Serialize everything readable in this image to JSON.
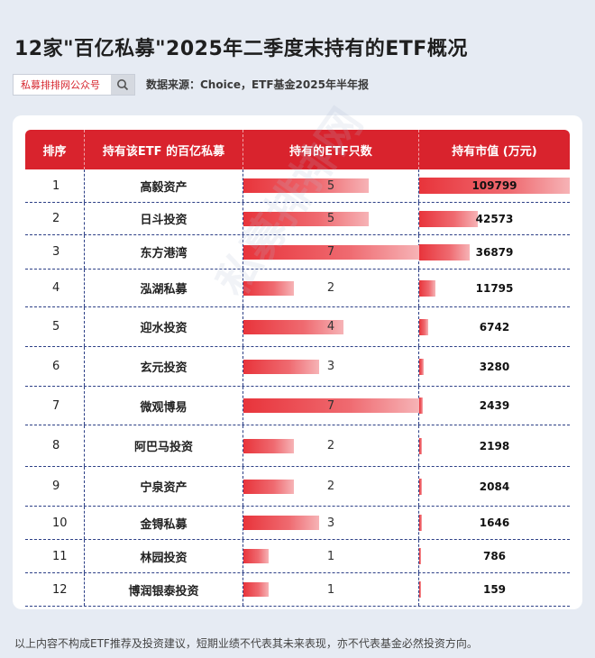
{
  "title": "12家\"百亿私募\"2025年二季度末持有的ETF概况",
  "search": {
    "text": "私募排排网公众号",
    "icon": "search-icon"
  },
  "source": "数据来源：Choice，ETF基金2025年半年报",
  "footnote": "以上内容不构成ETF推荐及投资建议，短期业绩不代表其未来表现，亦不代表基金必然投资方向。",
  "watermark": "私募排排网",
  "colors": {
    "header": "#d9232d",
    "bar": "#e8343b",
    "divider": "#2c3f86"
  },
  "chart_data": {
    "type": "table",
    "columns": [
      "排序",
      "持有该ETF 的百亿私募",
      "持有的ETF只数",
      "持有市值 (万元)"
    ],
    "rows": [
      {
        "rank": "1",
        "name": "高毅资产",
        "count": 5,
        "value": 109799
      },
      {
        "rank": "2",
        "name": "日斗投资",
        "count": 5,
        "value": 42573
      },
      {
        "rank": "3",
        "name": "东方港湾",
        "count": 7,
        "value": 36879
      },
      {
        "rank": "4",
        "name": "泓湖私募",
        "count": 2,
        "value": 11795
      },
      {
        "rank": "5",
        "name": "迎水投资",
        "count": 4,
        "value": 6742
      },
      {
        "rank": "6",
        "name": "玄元投资",
        "count": 3,
        "value": 3280
      },
      {
        "rank": "7",
        "name": "微观博易",
        "count": 7,
        "value": 2439
      },
      {
        "rank": "8",
        "name": "阿巴马投资",
        "count": 2,
        "value": 2198
      },
      {
        "rank": "9",
        "name": "宁泉资产",
        "count": 2,
        "value": 2084
      },
      {
        "rank": "10",
        "name": "金锝私募",
        "count": 3,
        "value": 1646
      },
      {
        "rank": "11",
        "name": "林园投资",
        "count": 1,
        "value": 786
      },
      {
        "rank": "12",
        "name": "博润银泰投资",
        "count": 1,
        "value": 159
      }
    ]
  }
}
